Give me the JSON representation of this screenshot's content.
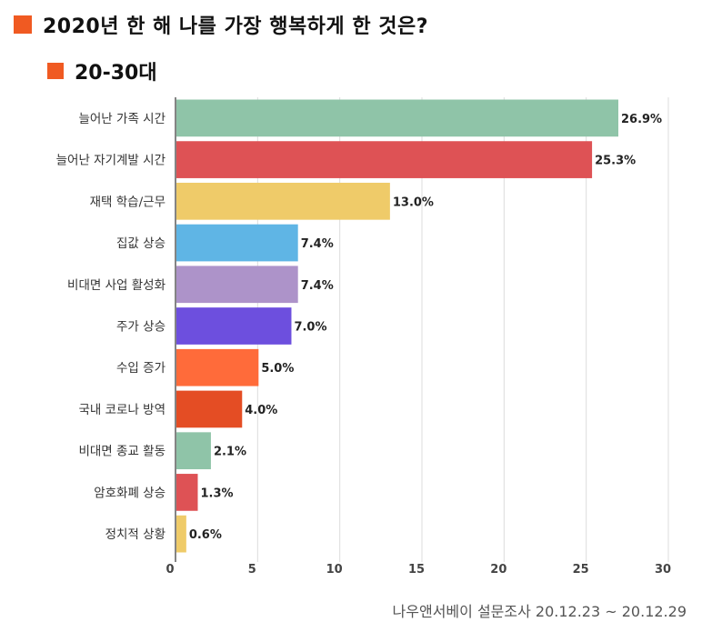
{
  "title": "2020년 한 해 나를 가장 행복하게 한 것은?",
  "subtitle": "20-30대",
  "source": "나우앤서베이 설문조사 20.12.23 ~ 20.12.29",
  "colors": {
    "accent": "#f05a22"
  },
  "chart_data": {
    "type": "bar",
    "orientation": "horizontal",
    "title": "2020년 한 해 나를 가장 행복하게 한 것은?",
    "subtitle": "20-30대",
    "xlabel": "",
    "ylabel": "",
    "xlim": [
      0,
      30
    ],
    "ticks": [
      0,
      5,
      10,
      15,
      20,
      25,
      30
    ],
    "grid": true,
    "categories": [
      "늘어난 가족 시간",
      "늘어난 자기계발 시간",
      "재택 학습/근무",
      "집값 상승",
      "비대면 사업 활성화",
      "주가 상승",
      "수입 증가",
      "국내 코로나 방역",
      "비대면 종교 활동",
      "암호화폐 상승",
      "정치적 상황"
    ],
    "values": [
      26.9,
      25.3,
      13.0,
      7.4,
      7.4,
      7.0,
      5.0,
      4.0,
      2.1,
      1.3,
      0.6
    ],
    "labels": [
      "26.9%",
      "25.3%",
      "13.0%",
      "7.4%",
      "7.4%",
      "7.0%",
      "5.0%",
      "4.0%",
      "2.1%",
      "1.3%",
      "0.6%"
    ],
    "bar_colors": [
      "#8fc4a8",
      "#de5255",
      "#efcb69",
      "#5fb5e5",
      "#ad93c9",
      "#6d4fde",
      "#ff6b3a",
      "#e44d24",
      "#8fc4a8",
      "#de5255",
      "#efcb69"
    ]
  }
}
